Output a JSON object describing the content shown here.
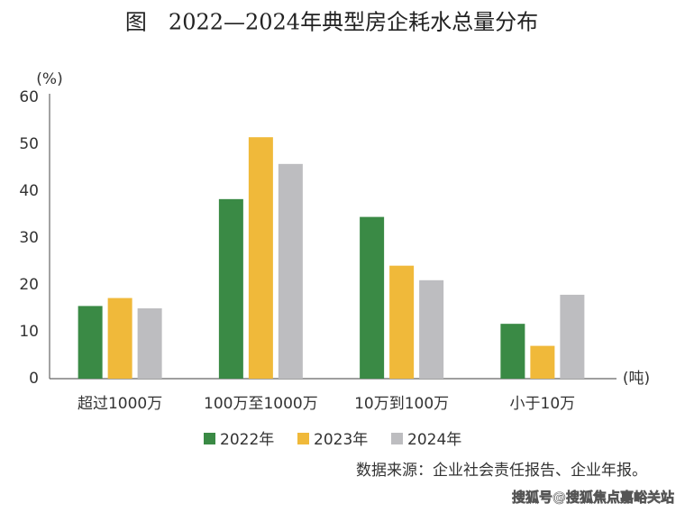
{
  "chart_data": {
    "type": "bar",
    "title": "图　2022—2024年典型房企耗水总量分布",
    "y_label": "(%)",
    "x_label": "(吨)",
    "categories": [
      "超过1000万",
      "100万至1000万",
      "10万到100万",
      "小于10万"
    ],
    "series": [
      {
        "name": "2022年",
        "color": "#3a8a45",
        "values": [
          15.5,
          38.3,
          34.5,
          11.7
        ]
      },
      {
        "name": "2023年",
        "color": "#f0b93a",
        "values": [
          17.2,
          51.5,
          24.1,
          7.0
        ]
      },
      {
        "name": "2024年",
        "color": "#bdbdc0",
        "values": [
          15.0,
          45.8,
          21.0,
          17.9
        ]
      }
    ],
    "ylim": [
      0,
      60
    ],
    "yticks": [
      0,
      10,
      20,
      30,
      40,
      50,
      60
    ],
    "source": "数据来源：企业社会责任报告、企业年报。",
    "watermark": "搜狐号@搜狐焦点嘉峪关站"
  }
}
